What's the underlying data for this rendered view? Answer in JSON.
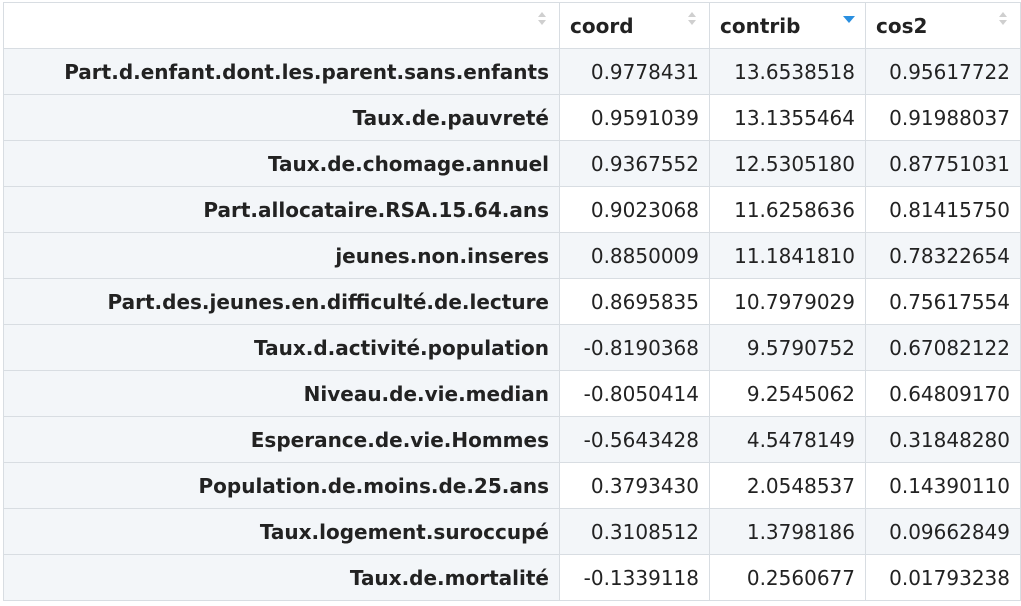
{
  "table": {
    "columns": [
      {
        "label": "",
        "sort_state": "none"
      },
      {
        "label": "coord",
        "sort_state": "none"
      },
      {
        "label": "contrib",
        "sort_state": "descending"
      },
      {
        "label": "cos2",
        "sort_state": "none"
      }
    ],
    "rows": [
      {
        "name": "Part.d.enfant.dont.les.parent.sans.enfants",
        "coord": "0.9778431",
        "contrib": "13.6538518",
        "cos2": "0.95617722"
      },
      {
        "name": "Taux.de.pauvreté",
        "coord": "0.9591039",
        "contrib": "13.1355464",
        "cos2": "0.91988037"
      },
      {
        "name": "Taux.de.chomage.annuel",
        "coord": "0.9367552",
        "contrib": "12.5305180",
        "cos2": "0.87751031"
      },
      {
        "name": "Part.allocataire.RSA.15.64.ans",
        "coord": "0.9023068",
        "contrib": "11.6258636",
        "cos2": "0.81415750"
      },
      {
        "name": "jeunes.non.inseres",
        "coord": "0.8850009",
        "contrib": "11.1841810",
        "cos2": "0.78322654"
      },
      {
        "name": "Part.des.jeunes.en.difficulté.de.lecture",
        "coord": "0.8695835",
        "contrib": "10.7979029",
        "cos2": "0.75617554"
      },
      {
        "name": "Taux.d.activité.population",
        "coord": "-0.8190368",
        "contrib": "9.5790752",
        "cos2": "0.67082122"
      },
      {
        "name": "Niveau.de.vie.median",
        "coord": "-0.8050414",
        "contrib": "9.2545062",
        "cos2": "0.64809170"
      },
      {
        "name": "Esperance.de.vie.Hommes",
        "coord": "-0.5643428",
        "contrib": "4.5478149",
        "cos2": "0.31848280"
      },
      {
        "name": "Population.de.moins.de.25.ans",
        "coord": "0.3793430",
        "contrib": "2.0548537",
        "cos2": "0.14390110"
      },
      {
        "name": "Taux.logement.suroccupé",
        "coord": "0.3108512",
        "contrib": "1.3798186",
        "cos2": "0.09662849"
      },
      {
        "name": "Taux.de.mortalité",
        "coord": "-0.1339118",
        "contrib": "0.2560677",
        "cos2": "0.01793238"
      }
    ]
  },
  "colors": {
    "border": "#d8dde2",
    "stripe": "#f3f6f9",
    "sort_active": "#2a8fe0",
    "sort_inactive": "#cfcfcf"
  },
  "icons": {
    "sort_inactive": "sort-both-icon",
    "sort_active": "sort-descending-icon"
  }
}
